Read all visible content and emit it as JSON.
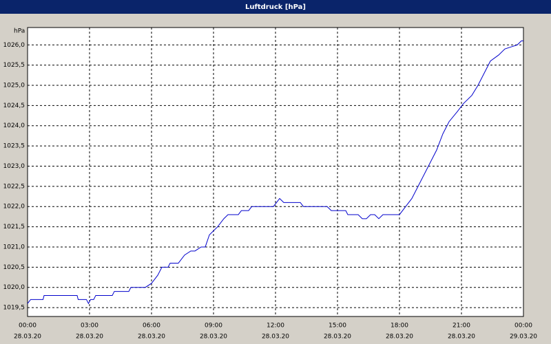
{
  "chart_data": {
    "type": "line",
    "title": "Luftdruck [hPa]",
    "y_unit": "hPa",
    "color": "#0000cc",
    "grid": true,
    "xlim": [
      0,
      24
    ],
    "ylim": [
      1019.28,
      1026.43
    ],
    "xticks": [
      {
        "value": 0,
        "label": "00:00",
        "date": "28.03.20"
      },
      {
        "value": 3,
        "label": "03:00",
        "date": "28.03.20"
      },
      {
        "value": 6,
        "label": "06:00",
        "date": "28.03.20"
      },
      {
        "value": 9,
        "label": "09:00",
        "date": "28.03.20"
      },
      {
        "value": 12,
        "label": "12:00",
        "date": "28.03.20"
      },
      {
        "value": 15,
        "label": "15:00",
        "date": "28.03.20"
      },
      {
        "value": 18,
        "label": "18:00",
        "date": "28.03.20"
      },
      {
        "value": 21,
        "label": "21:00",
        "date": "28.03.20"
      },
      {
        "value": 24,
        "label": "00:00",
        "date": "29.03.20"
      }
    ],
    "yticks": [
      {
        "value": 1019.5,
        "label": "1019,5"
      },
      {
        "value": 1020.0,
        "label": "1020,0"
      },
      {
        "value": 1020.5,
        "label": "1020,5"
      },
      {
        "value": 1021.0,
        "label": "1021,0"
      },
      {
        "value": 1021.5,
        "label": "1021,5"
      },
      {
        "value": 1022.0,
        "label": "1022,0"
      },
      {
        "value": 1022.5,
        "label": "1022,5"
      },
      {
        "value": 1023.0,
        "label": "1023,0"
      },
      {
        "value": 1023.5,
        "label": "1023,5"
      },
      {
        "value": 1024.0,
        "label": "1024,0"
      },
      {
        "value": 1024.5,
        "label": "1024,5"
      },
      {
        "value": 1025.0,
        "label": "1025,0"
      },
      {
        "value": 1025.5,
        "label": "1025,5"
      },
      {
        "value": 1026.0,
        "label": "1026,0"
      }
    ],
    "x": [
      0,
      0.15,
      0.75,
      0.8,
      2.4,
      2.45,
      2.85,
      2.95,
      3.05,
      3.2,
      3.3,
      4.1,
      4.2,
      4.9,
      5.0,
      5.7,
      6.0,
      6.3,
      6.5,
      6.8,
      6.9,
      7.3,
      7.6,
      7.9,
      8.1,
      8.4,
      8.6,
      8.8,
      9.2,
      9.5,
      9.7,
      10.2,
      10.35,
      10.7,
      10.85,
      11.9,
      12.2,
      12.4,
      13.2,
      13.35,
      14.5,
      14.7,
      15.4,
      15.5,
      16.0,
      16.2,
      16.4,
      16.6,
      16.8,
      17.0,
      17.2,
      18.0,
      18.3,
      18.6,
      18.9,
      19.2,
      19.5,
      19.8,
      20.1,
      20.4,
      20.8,
      21.1,
      21.5,
      21.8,
      22.1,
      22.4,
      22.8,
      23.1,
      23.4,
      23.7,
      23.9,
      24.0
    ],
    "y": [
      1019.6,
      1019.7,
      1019.7,
      1019.8,
      1019.8,
      1019.7,
      1019.7,
      1019.6,
      1019.7,
      1019.7,
      1019.8,
      1019.8,
      1019.9,
      1019.9,
      1020.0,
      1020.0,
      1020.1,
      1020.3,
      1020.5,
      1020.5,
      1020.6,
      1020.6,
      1020.8,
      1020.9,
      1020.9,
      1021.0,
      1021.0,
      1021.3,
      1021.5,
      1021.7,
      1021.8,
      1021.8,
      1021.9,
      1021.9,
      1022.0,
      1022.0,
      1022.2,
      1022.1,
      1022.1,
      1022.0,
      1022.0,
      1021.9,
      1021.9,
      1021.8,
      1021.8,
      1021.7,
      1021.7,
      1021.8,
      1021.8,
      1021.7,
      1021.8,
      1021.8,
      1022.0,
      1022.2,
      1022.5,
      1022.8,
      1023.1,
      1023.4,
      1023.8,
      1024.1,
      1024.35,
      1024.55,
      1024.75,
      1025.0,
      1025.3,
      1025.6,
      1025.75,
      1025.9,
      1025.95,
      1026.0,
      1026.1,
      1026.1
    ]
  }
}
